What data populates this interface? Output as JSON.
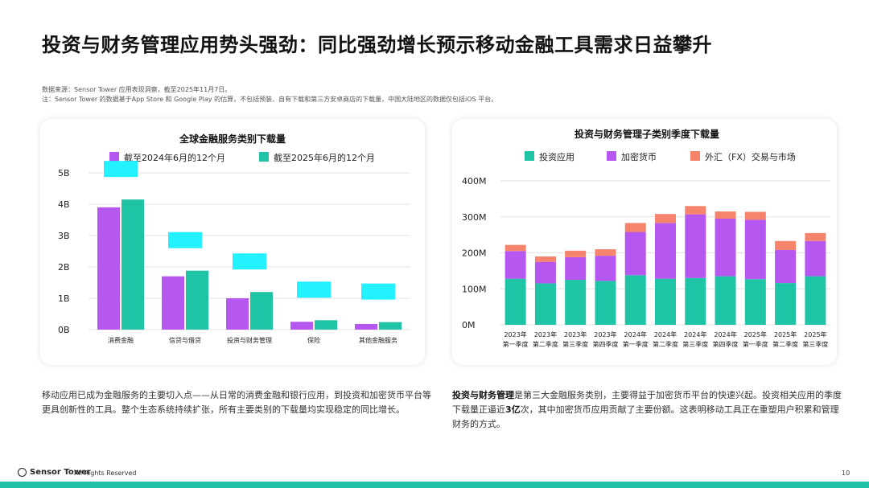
{
  "title": "投资与财务管理应用势头强劲：同比强劲增长预示移动金融工具需求日益攀升",
  "source_note": "数据来源：Sensor Tower 应用表现洞察，截至2025年11月7日。",
  "footnote": "注：Sensor Tower 的数据基于App Store 和 Google Play 的估算，不包括预装、自有下载和第三方安卓商店的下载量，中国大陆地区的数据仅包括iOS 平台。",
  "colors": {
    "purple": "#b657f0",
    "teal": "#1fc4a6",
    "salmon": "#f6836c",
    "cyan_box": "#23f1ff"
  },
  "chart_data": [
    {
      "type": "bar",
      "title": "全球金融服务类别下载量",
      "legend_position": "top",
      "categories": [
        "消费金融",
        "信贷与借贷",
        "投资与财务管理",
        "保险",
        "其他金融服务"
      ],
      "series": [
        {
          "name": "截至2024年6月的12个月",
          "color": "#b657f0",
          "values": [
            3.9,
            1.7,
            1.0,
            0.25,
            0.18
          ]
        },
        {
          "name": "截至2025年6月的12个月",
          "color": "#1fc4a6",
          "values": [
            4.15,
            1.88,
            1.2,
            0.3,
            0.24
          ]
        }
      ],
      "yticks": [
        "0B",
        "1B",
        "2B",
        "3B",
        "4B",
        "5B"
      ],
      "ylim": [
        0,
        5
      ],
      "grid": true
    },
    {
      "type": "bar",
      "stacked": true,
      "title": "投资与财务管理子类别季度下载量",
      "legend_position": "top",
      "categories": [
        [
          "2023年",
          "第一季度"
        ],
        [
          "2023年",
          "第二季度"
        ],
        [
          "2023年",
          "第三季度"
        ],
        [
          "2023年",
          "第四季度"
        ],
        [
          "2024年",
          "第一季度"
        ],
        [
          "2024年",
          "第二季度"
        ],
        [
          "2024年",
          "第三季度"
        ],
        [
          "2024年",
          "第四季度"
        ],
        [
          "2025年",
          "第一季度"
        ],
        [
          "2025年",
          "第二季度"
        ],
        [
          "2025年",
          "第三季度"
        ]
      ],
      "series": [
        {
          "name": "投资应用",
          "color": "#1fc4a6",
          "values": [
            128,
            115,
            125,
            122,
            138,
            128,
            130,
            135,
            127,
            116,
            135
          ]
        },
        {
          "name": "加密货币",
          "color": "#b657f0",
          "values": [
            77,
            60,
            63,
            70,
            120,
            155,
            177,
            160,
            165,
            92,
            98
          ]
        },
        {
          "name": "外汇（FX）交易与市场",
          "color": "#f6836c",
          "values": [
            17,
            15,
            18,
            18,
            25,
            25,
            23,
            20,
            22,
            25,
            22
          ]
        }
      ],
      "yticks": [
        "0M",
        "100M",
        "200M",
        "300M",
        "400M"
      ],
      "ylim": [
        0,
        400
      ],
      "grid": true
    }
  ],
  "paragraph_left": "移动应用已成为金融服务的主要切入点——从日常的消费金融和银行应用，到投资和加密货币平台等更具创新性的工具。整个生态系统持续扩张，所有主要类别的下载量均实现稳定的同比增长。",
  "paragraph_right_bold": "投资与财务管理",
  "paragraph_right_pre": "是第三大金融服务类别，主要得益于加密货币平台的快速兴起。投资相关应用的季度下载量正逼近",
  "paragraph_right_bold2": "3亿",
  "paragraph_right_post": "次，其中加密货币应用贡献了主要份额。这表明移动工具正在重塑用户积累和管理财务的方式。",
  "footer": {
    "brand": "Sensor Tower",
    "rights": "All Rights Reserved",
    "page": "10"
  }
}
